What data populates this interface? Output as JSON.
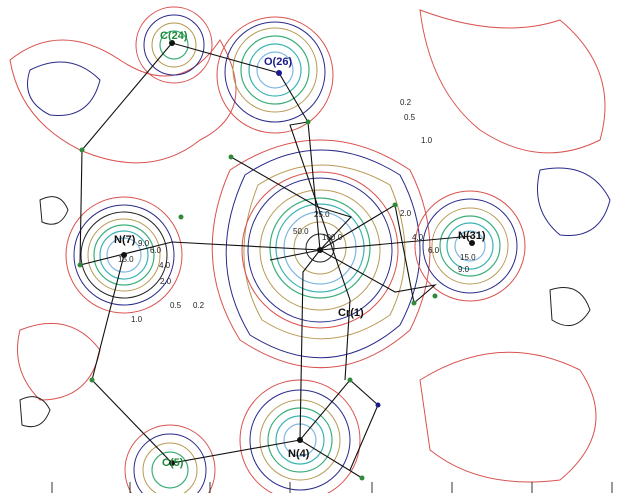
{
  "atoms": [
    "C(24)",
    "O(26)",
    "N(7)",
    "N(31)",
    "Cr(1)",
    "C(5)",
    "N(4)"
  ],
  "contour_labels": [
    "0.2",
    "0.5",
    "1.0",
    "2.0",
    "4.0",
    "6.0",
    "15.0",
    "9.0",
    "25.0",
    "50.0",
    "100.0",
    "9.0",
    "6.0",
    "15.0",
    "4.0",
    "2.0",
    "0.5",
    "0.2",
    "1.0"
  ]
}
